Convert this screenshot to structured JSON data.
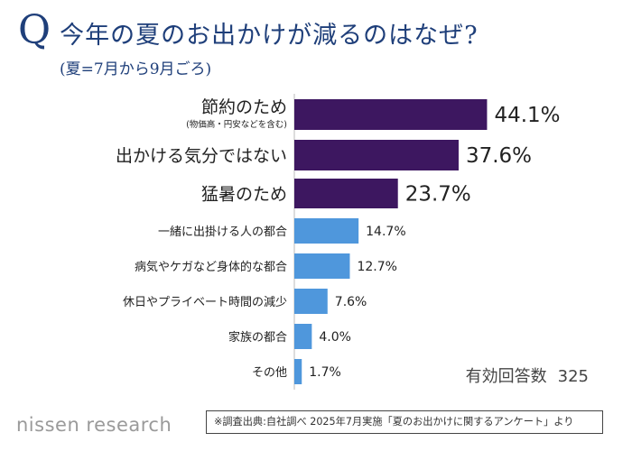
{
  "header": {
    "q_mark": "Q",
    "title": "今年の夏のお出かけが減るのはなぜ?",
    "subtitle": "(夏=7月から9月ごろ)"
  },
  "colors": {
    "top_bar": "#3d1760",
    "other_bar": "#4f97dc",
    "title": "#1f3f7a"
  },
  "chart_data": {
    "type": "bar",
    "orientation": "horizontal",
    "categories": [
      "節約のため",
      "出かける気分ではない",
      "猛暑のため",
      "一緒に出掛ける人の都合",
      "病気やケガなど身体的な都合",
      "休日やプライベート時間の減少",
      "家族の都合",
      "その他"
    ],
    "category_notes": [
      "(物価高・円安などを含む)",
      "",
      "",
      "",
      "",
      "",
      "",
      ""
    ],
    "values": [
      44.1,
      37.6,
      23.7,
      14.7,
      12.7,
      7.6,
      4.0,
      1.7
    ],
    "value_labels": [
      "44.1%",
      "37.6%",
      "23.7%",
      "14.7%",
      "12.7%",
      "7.6%",
      "4.0%",
      "1.7%"
    ],
    "unit": "%",
    "highlight_top": 3,
    "grid": false,
    "legend": "none"
  },
  "sample": {
    "label": "有効回答数",
    "value": "325"
  },
  "footer": {
    "logo": "nissen research",
    "note": "※調査出典:自社調べ 2025年7月実施「夏のお出かけに関するアンケート」より"
  }
}
